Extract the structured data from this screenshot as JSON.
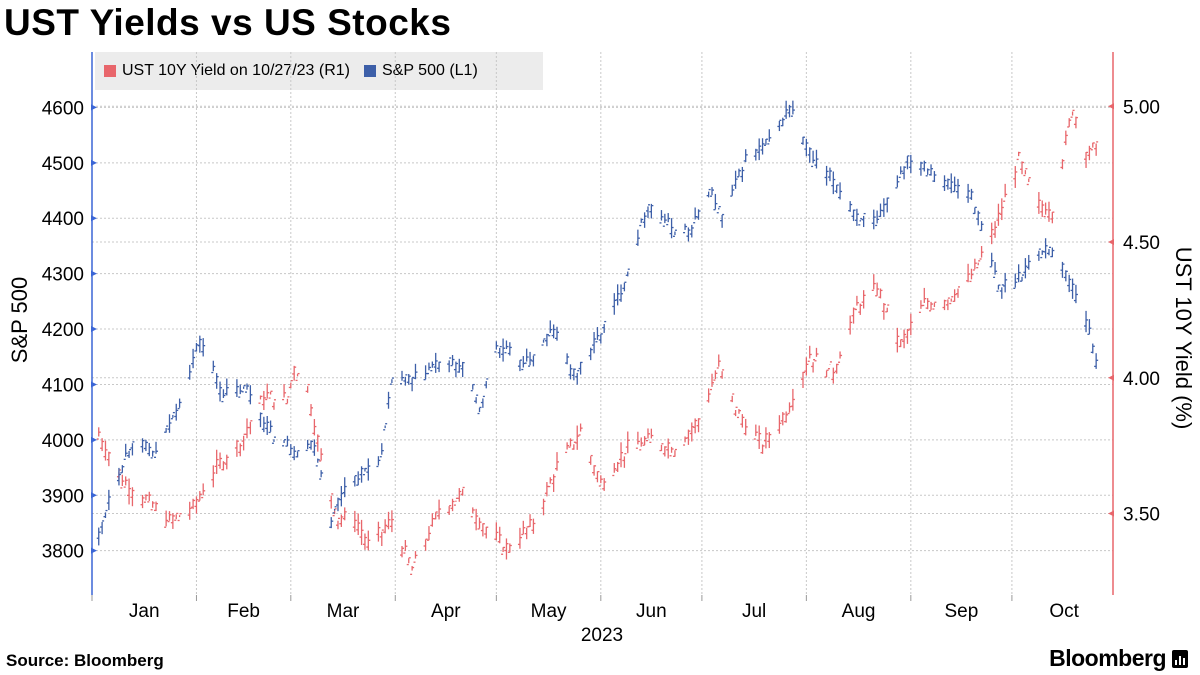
{
  "title": "UST Yields vs US Stocks",
  "source": "Source: Bloomberg",
  "brand": "Bloomberg",
  "colors": {
    "yield": "#e8666b",
    "spx": "#3d5fa8",
    "left_axis": "#3b66d6",
    "right_axis": "#e8666b",
    "grid": "#c8c8c8"
  },
  "chart_data": {
    "type": "line",
    "style": "ohlc-bars",
    "title": "UST Yields vs US Stocks",
    "legend_placement": "top-left",
    "grid": true,
    "xlabel": "2023",
    "x_tick_labels": [
      "Jan",
      "Feb",
      "Mar",
      "Apr",
      "May",
      "Jun",
      "Jul",
      "Aug",
      "Sep",
      "Oct"
    ],
    "x_domain": [
      "2023-01-01",
      "2023-10-31"
    ],
    "left_axis": {
      "label": "S&P 500",
      "ticks": [
        3800,
        3900,
        4000,
        4100,
        4200,
        4300,
        4400,
        4500,
        4600
      ],
      "range": [
        3720,
        4700
      ]
    },
    "right_axis": {
      "label": "UST 10Y Yield (%)",
      "ticks": [
        "3.50",
        "4.00",
        "4.50",
        "5.00"
      ],
      "range": [
        3.2,
        5.2
      ]
    },
    "series": [
      {
        "name": "UST 10Y Yield on 10/27/23 (R1)",
        "axis": "right",
        "points": [
          [
            "2023-01-03",
            3.79
          ],
          [
            "2023-01-10",
            3.62
          ],
          [
            "2023-01-17",
            3.55
          ],
          [
            "2023-01-24",
            3.47
          ],
          [
            "2023-01-31",
            3.52
          ],
          [
            "2023-02-07",
            3.67
          ],
          [
            "2023-02-14",
            3.76
          ],
          [
            "2023-02-21",
            3.93
          ],
          [
            "2023-02-28",
            3.92
          ],
          [
            "2023-03-02",
            4.04
          ],
          [
            "2023-03-06",
            3.96
          ],
          [
            "2023-03-10",
            3.7
          ],
          [
            "2023-03-15",
            3.48
          ],
          [
            "2023-03-20",
            3.48
          ],
          [
            "2023-03-24",
            3.38
          ],
          [
            "2023-03-31",
            3.47
          ],
          [
            "2023-04-06",
            3.29
          ],
          [
            "2023-04-14",
            3.51
          ],
          [
            "2023-04-21",
            3.57
          ],
          [
            "2023-04-28",
            3.44
          ],
          [
            "2023-05-04",
            3.37
          ],
          [
            "2023-05-12",
            3.46
          ],
          [
            "2023-05-19",
            3.67
          ],
          [
            "2023-05-26",
            3.8
          ],
          [
            "2023-06-01",
            3.61
          ],
          [
            "2023-06-09",
            3.74
          ],
          [
            "2023-06-16",
            3.77
          ],
          [
            "2023-06-23",
            3.74
          ],
          [
            "2023-06-30",
            3.84
          ],
          [
            "2023-07-06",
            4.04
          ],
          [
            "2023-07-12",
            3.86
          ],
          [
            "2023-07-19",
            3.75
          ],
          [
            "2023-07-26",
            3.87
          ],
          [
            "2023-08-02",
            4.08
          ],
          [
            "2023-08-09",
            4.02
          ],
          [
            "2023-08-16",
            4.26
          ],
          [
            "2023-08-22",
            4.33
          ],
          [
            "2023-08-29",
            4.12
          ],
          [
            "2023-09-05",
            4.27
          ],
          [
            "2023-09-12",
            4.29
          ],
          [
            "2023-09-19",
            4.37
          ],
          [
            "2023-09-26",
            4.55
          ],
          [
            "2023-10-03",
            4.8
          ],
          [
            "2023-10-09",
            4.63
          ],
          [
            "2023-10-13",
            4.62
          ],
          [
            "2023-10-19",
            4.99
          ],
          [
            "2023-10-23",
            4.84
          ],
          [
            "2023-10-27",
            4.84
          ]
        ]
      },
      {
        "name": "S&P 500 (L1)",
        "axis": "left",
        "points": [
          [
            "2023-01-03",
            3825
          ],
          [
            "2023-01-06",
            3896
          ],
          [
            "2023-01-13",
            3999
          ],
          [
            "2023-01-20",
            3972
          ],
          [
            "2023-01-27",
            4070
          ],
          [
            "2023-02-02",
            4180
          ],
          [
            "2023-02-09",
            4082
          ],
          [
            "2023-02-16",
            4090
          ],
          [
            "2023-02-23",
            4012
          ],
          [
            "2023-03-02",
            3982
          ],
          [
            "2023-03-08",
            3992
          ],
          [
            "2023-03-13",
            3856
          ],
          [
            "2023-03-17",
            3917
          ],
          [
            "2023-03-22",
            3937
          ],
          [
            "2023-03-28",
            3972
          ],
          [
            "2023-03-31",
            4109
          ],
          [
            "2023-04-06",
            4105
          ],
          [
            "2023-04-14",
            4138
          ],
          [
            "2023-04-21",
            4133
          ],
          [
            "2023-04-26",
            4056
          ],
          [
            "2023-05-01",
            4167
          ],
          [
            "2023-05-10",
            4137
          ],
          [
            "2023-05-18",
            4198
          ],
          [
            "2023-05-24",
            4115
          ],
          [
            "2023-05-31",
            4180
          ],
          [
            "2023-06-07",
            4267
          ],
          [
            "2023-06-15",
            4426
          ],
          [
            "2023-06-22",
            4381
          ],
          [
            "2023-06-28",
            4376
          ],
          [
            "2023-07-03",
            4455
          ],
          [
            "2023-07-07",
            4398
          ],
          [
            "2023-07-14",
            4505
          ],
          [
            "2023-07-21",
            4536
          ],
          [
            "2023-07-27",
            4600
          ],
          [
            "2023-08-03",
            4501
          ],
          [
            "2023-08-09",
            4467
          ],
          [
            "2023-08-16",
            4404
          ],
          [
            "2023-08-22",
            4388
          ],
          [
            "2023-08-31",
            4507
          ],
          [
            "2023-09-05",
            4497
          ],
          [
            "2023-09-12",
            4461
          ],
          [
            "2023-09-19",
            4443
          ],
          [
            "2023-09-27",
            4274
          ],
          [
            "2023-10-02",
            4288
          ],
          [
            "2023-10-09",
            4336
          ],
          [
            "2023-10-12",
            4349
          ],
          [
            "2023-10-19",
            4278
          ],
          [
            "2023-10-23",
            4217
          ],
          [
            "2023-10-27",
            4117
          ]
        ]
      }
    ]
  }
}
